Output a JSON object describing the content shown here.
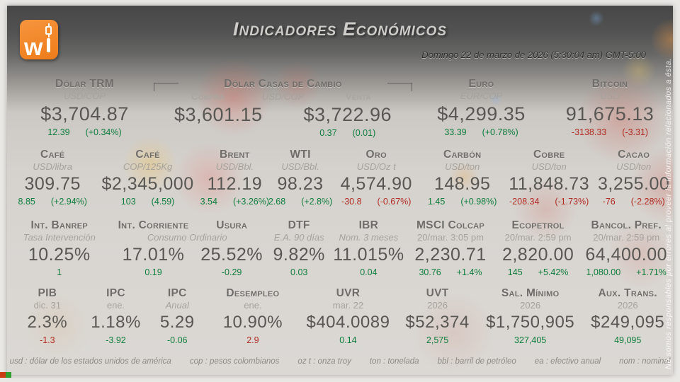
{
  "header": {
    "title": "Indicadores Económicos",
    "datetime": "Domingo 22 de marzo de 2026 (5:30:04 am) GMT-5:00",
    "logo_letter": "w"
  },
  "rows": [
    {
      "name": "currencies",
      "items": [
        {
          "type": "single",
          "id": "dolar-trm",
          "title": "Dólar TRM",
          "sub": "USD/COP",
          "sub_italic": true,
          "value": "$3,704.87",
          "chg": "12.39",
          "pct": "(+0.34%)",
          "color": "g"
        },
        {
          "type": "casas",
          "id": "dolar-casas",
          "title": "Dólar Casas de Cambio",
          "col_left": "Compra",
          "col_mid": "USD/COP",
          "col_right": "Venta",
          "value_left": "$3,601.15",
          "value_right": "$3,722.96",
          "chg": "0.37",
          "pct": "(0.01)",
          "color": "g"
        },
        {
          "type": "single",
          "id": "euro",
          "title": "Euro",
          "sub": "EUR/COP",
          "sub_italic": true,
          "value": "$4,299.35",
          "chg": "33.39",
          "pct": "(+0.78%)",
          "color": "g"
        },
        {
          "type": "single",
          "id": "bitcoin",
          "title": "Bitcoin",
          "sub": "USD",
          "sub_italic": true,
          "value": "91,675.13",
          "chg": "-3138.33",
          "pct": "(-3.31)",
          "color": "r"
        }
      ]
    },
    {
      "name": "commodities",
      "items": [
        {
          "type": "single",
          "id": "cafe-usd",
          "title": "Café",
          "sub": "USD/libra",
          "sub_italic": true,
          "value": "309.75",
          "chg": "8.85",
          "pct": "(+2.94%)",
          "color": "g"
        },
        {
          "type": "single",
          "id": "cafe-cop",
          "title": "Café",
          "sub": "COP/125Kg",
          "sub_italic": true,
          "value": "$2,345,000",
          "chg": "103",
          "pct": "(4.59)",
          "color": "g"
        },
        {
          "type": "single",
          "id": "brent",
          "title": "Brent",
          "sub": "USD/Bbl.",
          "sub_italic": true,
          "value": "112.19",
          "chg": "3.54",
          "pct": "(+3.26%)",
          "color": "g"
        },
        {
          "type": "single",
          "id": "wti",
          "title": "WTI",
          "sub": "USD/Bbl.",
          "sub_italic": true,
          "value": "98.23",
          "chg": "2.68",
          "pct": "(+2.8%)",
          "color": "g"
        },
        {
          "type": "single",
          "id": "oro",
          "title": "Oro",
          "sub": "USD/Oz t",
          "sub_italic": true,
          "value": "4,574.90",
          "chg": "-30.8",
          "pct": "(-0.67%)",
          "color": "r"
        },
        {
          "type": "single",
          "id": "carbon",
          "title": "Carbón",
          "sub": "USD/ton",
          "sub_italic": true,
          "value": "148.95",
          "chg": "1.45",
          "pct": "(+0.98%)",
          "color": "g"
        },
        {
          "type": "single",
          "id": "cobre",
          "title": "Cobre",
          "sub": "USD/ton",
          "sub_italic": true,
          "value": "11,848.73",
          "chg": "-208.34",
          "pct": "(-1.73%)",
          "color": "r"
        },
        {
          "type": "single",
          "id": "cacao",
          "title": "Cacao",
          "sub": "USD/ton",
          "sub_italic": true,
          "value": "3,255.00",
          "chg": "-76",
          "pct": "(-2.28%)",
          "color": "r"
        }
      ]
    },
    {
      "name": "rates_stocks",
      "items": [
        {
          "type": "single",
          "id": "int-banrep",
          "title": "Int. Banrep",
          "sub": "Tasa Intervención",
          "sub_italic": true,
          "value": "10.25%",
          "chg": "1",
          "pct": "",
          "color": "g"
        },
        {
          "type": "pair",
          "id": "corriente-usura",
          "shared_sub": "Consumo Ordinario",
          "left": {
            "title": "Int. Corriente",
            "value": "17.01%",
            "chg": "0.19",
            "color": "g"
          },
          "right": {
            "title": "Usura",
            "value": "25.52%",
            "chg": "-0.29",
            "color": "g"
          }
        },
        {
          "type": "single",
          "id": "dtf",
          "title": "DTF",
          "sub": "E.A. 90 días",
          "sub_italic": true,
          "value": "9.82%",
          "chg": "0.03",
          "pct": "",
          "color": "g"
        },
        {
          "type": "single",
          "id": "ibr",
          "title": "IBR",
          "sub": "Nom. 3 meses",
          "sub_italic": true,
          "value": "11.015%",
          "chg": "0.04",
          "pct": "",
          "color": "g"
        },
        {
          "type": "single",
          "id": "msci",
          "title": "MSCI Colcap",
          "sub": "20/mar. 3:05 pm",
          "sub_italic": false,
          "value": "2,230.71",
          "chg": "30.76",
          "pct": "+1.4%",
          "color": "g"
        },
        {
          "type": "single",
          "id": "ecopetrol",
          "title": "Ecopetrol",
          "sub": "20/mar. 2:59 pm",
          "sub_italic": false,
          "value": "2,820.00",
          "chg": "145",
          "pct": "+5.42%",
          "color": "g"
        },
        {
          "type": "single",
          "id": "bancol",
          "title": "Bancol. Pref.",
          "sub": "20/mar. 2:59 pm",
          "sub_italic": false,
          "value": "64,400.00",
          "chg": "1,080.00",
          "pct": "+1.71%",
          "color": "g"
        }
      ]
    },
    {
      "name": "macro",
      "items": [
        {
          "type": "single",
          "id": "pib",
          "title": "PIB",
          "sub": "dic. 31",
          "sub_italic": false,
          "value": "2.3%",
          "chg": "-1.3",
          "pct": "",
          "color": "r"
        },
        {
          "type": "single",
          "id": "ipc",
          "title": "IPC",
          "sub": "ene.",
          "sub_italic": false,
          "value": "1.18%",
          "chg": "-3.92",
          "pct": "",
          "color": "g"
        },
        {
          "type": "single",
          "id": "ipc-anual",
          "title": "IPC",
          "sub": "Anual",
          "sub_italic": true,
          "value": "5.29",
          "chg": "-0.06",
          "pct": "",
          "color": "g"
        },
        {
          "type": "single",
          "id": "desempleo",
          "title": "Desempleo",
          "sub": "ene.",
          "sub_italic": false,
          "value": "10.90%",
          "chg": "2.9",
          "pct": "",
          "color": "r"
        },
        {
          "type": "single",
          "id": "uvr",
          "title": "UVR",
          "sub": "mar. 22",
          "sub_italic": false,
          "value": "$404.0089",
          "chg": "0.14",
          "pct": "",
          "color": "g"
        },
        {
          "type": "single",
          "id": "uvt",
          "title": "UVT",
          "sub": "2026",
          "sub_italic": false,
          "value": "$52,374",
          "chg": "2,575",
          "pct": "",
          "color": "g"
        },
        {
          "type": "single",
          "id": "sal-minimo",
          "title": "Sal. Mínimo",
          "sub": "2026",
          "sub_italic": false,
          "value": "$1,750,905",
          "chg": "327,405",
          "pct": "",
          "color": "g"
        },
        {
          "type": "single",
          "id": "aux-trans",
          "title": "Aux. Trans.",
          "sub": "2026",
          "sub_italic": false,
          "value": "$249,095",
          "chg": "49,095",
          "pct": "",
          "color": "g"
        }
      ]
    }
  ],
  "footer": {
    "legend": [
      "usd : dólar de los estados unidos de américa",
      "cop : pesos colombianos",
      "oz t : onza troy",
      "ton : tonelada",
      "bbl : barril de petróleo",
      "ea : efectivo anual",
      "nom : nominal"
    ]
  },
  "disclaimer": "No somos responsables por errores al proveer la información relacionados a ésta.",
  "colors": {
    "positive": "#0e7e3e",
    "negative": "#b22a22",
    "brand_orange": "#ee7c19"
  }
}
